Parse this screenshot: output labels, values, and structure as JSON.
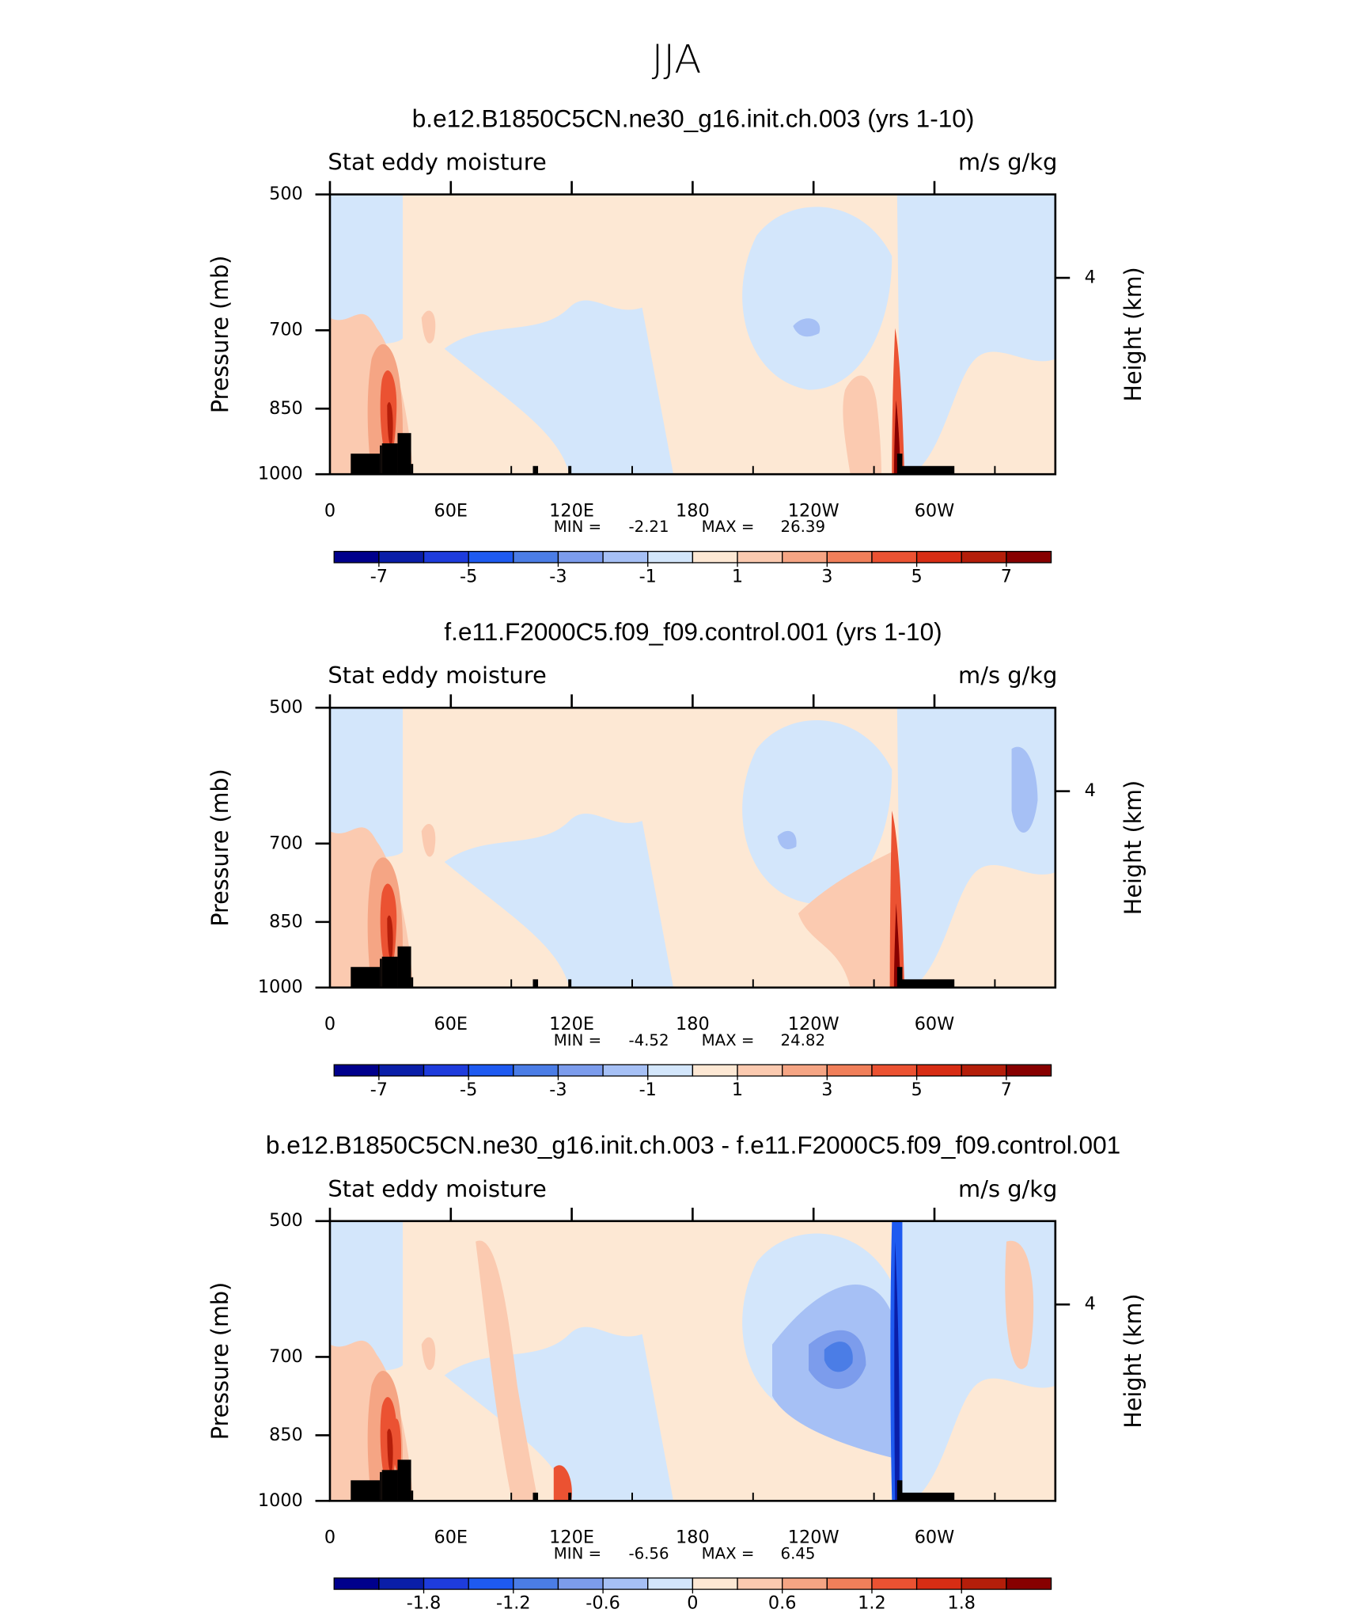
{
  "title": "JJA",
  "chart_data": [
    {
      "type": "contour",
      "title": "b.e12.B1850C5CN.ne30_g16.init.ch.003 (yrs 1-10)",
      "left_label": "Stat eddy moisture",
      "right_label": "m/s g/kg",
      "ylabel": "Pressure (mb)",
      "y2label": "Height (km)",
      "xlim": [
        0,
        360
      ],
      "xticks": [
        0,
        {
          "value": 60,
          "label": "60E"
        },
        {
          "value": 120,
          "label": "120E"
        },
        180,
        {
          "value": 240,
          "label": "120W"
        },
        {
          "value": 300,
          "label": "60W"
        }
      ],
      "xminorticks": [
        30,
        90,
        150,
        210,
        270,
        330
      ],
      "ylim": [
        1000,
        500
      ],
      "ylog": true,
      "yticks": [
        500,
        700,
        850,
        1000
      ],
      "y2lim": [
        0,
        5.7
      ],
      "y2ticks": [
        4
      ],
      "min_label": "MIN =",
      "min": -2.21,
      "max_label": "MAX =",
      "max": 26.39,
      "colorbar": {
        "levels": [
          -7,
          -6,
          -5,
          -4,
          -3,
          -2,
          -1,
          0,
          1,
          2,
          3,
          4,
          5,
          6,
          7
        ],
        "ticks": [
          -7,
          -5,
          -3,
          -1,
          1,
          3,
          5,
          7
        ],
        "colors": [
          "#00008c",
          "#0a1ea8",
          "#1e3cdc",
          "#1e5af0",
          "#4b7de6",
          "#7c9cec",
          "#a6c0f5",
          "#d3e6fb",
          "#fde8d4",
          "#fbcab0",
          "#f5a584",
          "#f07f5a",
          "#eb5232",
          "#d72d14",
          "#b41e0a",
          "#870000"
        ]
      }
    },
    {
      "type": "contour",
      "title": "f.e11.F2000C5.f09_f09.control.001 (yrs 1-10)",
      "left_label": "Stat eddy moisture",
      "right_label": "m/s g/kg",
      "ylabel": "Pressure (mb)",
      "y2label": "Height (km)",
      "xlim": [
        0,
        360
      ],
      "xticks": [
        0,
        {
          "value": 60,
          "label": "60E"
        },
        {
          "value": 120,
          "label": "120E"
        },
        180,
        {
          "value": 240,
          "label": "120W"
        },
        {
          "value": 300,
          "label": "60W"
        }
      ],
      "xminorticks": [
        30,
        90,
        150,
        210,
        270,
        330
      ],
      "ylim": [
        1000,
        500
      ],
      "ylog": true,
      "yticks": [
        500,
        700,
        850,
        1000
      ],
      "y2lim": [
        0,
        5.7
      ],
      "y2ticks": [
        4
      ],
      "min_label": "MIN =",
      "min": -4.52,
      "max_label": "MAX =",
      "max": 24.82,
      "colorbar": {
        "levels": [
          -7,
          -6,
          -5,
          -4,
          -3,
          -2,
          -1,
          0,
          1,
          2,
          3,
          4,
          5,
          6,
          7
        ],
        "ticks": [
          -7,
          -5,
          -3,
          -1,
          1,
          3,
          5,
          7
        ],
        "colors": [
          "#00008c",
          "#0a1ea8",
          "#1e3cdc",
          "#1e5af0",
          "#4b7de6",
          "#7c9cec",
          "#a6c0f5",
          "#d3e6fb",
          "#fde8d4",
          "#fbcab0",
          "#f5a584",
          "#f07f5a",
          "#eb5232",
          "#d72d14",
          "#b41e0a",
          "#870000"
        ]
      }
    },
    {
      "type": "contour",
      "title": "b.e12.B1850C5CN.ne30_g16.init.ch.003 - f.e11.F2000C5.f09_f09.control.001",
      "left_label": "Stat eddy moisture",
      "right_label": "m/s g/kg",
      "ylabel": "Pressure (mb)",
      "y2label": "Height (km)",
      "xlim": [
        0,
        360
      ],
      "xticks": [
        0,
        {
          "value": 60,
          "label": "60E"
        },
        {
          "value": 120,
          "label": "120E"
        },
        180,
        {
          "value": 240,
          "label": "120W"
        },
        {
          "value": 300,
          "label": "60W"
        }
      ],
      "xminorticks": [
        30,
        90,
        150,
        210,
        270,
        330
      ],
      "ylim": [
        1000,
        500
      ],
      "ylog": true,
      "yticks": [
        500,
        700,
        850,
        1000
      ],
      "y2lim": [
        0,
        5.7
      ],
      "y2ticks": [
        4
      ],
      "min_label": "MIN =",
      "min": -6.56,
      "max_label": "MAX =",
      "max": 6.45,
      "colorbar": {
        "levels": [
          -2.1,
          -1.8,
          -1.5,
          -1.2,
          -0.9,
          -0.6,
          -0.3,
          0,
          0.3,
          0.6,
          0.9,
          1.2,
          1.5,
          1.8,
          2.1
        ],
        "ticks": [
          -1.8,
          -1.2,
          -0.6,
          0,
          0.6,
          1.2,
          1.8
        ],
        "colors": [
          "#00008c",
          "#0a1ea8",
          "#1e3cdc",
          "#1e5af0",
          "#4b7de6",
          "#7c9cec",
          "#a6c0f5",
          "#d3e6fb",
          "#fde8d4",
          "#fbcab0",
          "#f5a584",
          "#f07f5a",
          "#eb5232",
          "#d72d14",
          "#b41e0a",
          "#870000"
        ]
      }
    }
  ]
}
